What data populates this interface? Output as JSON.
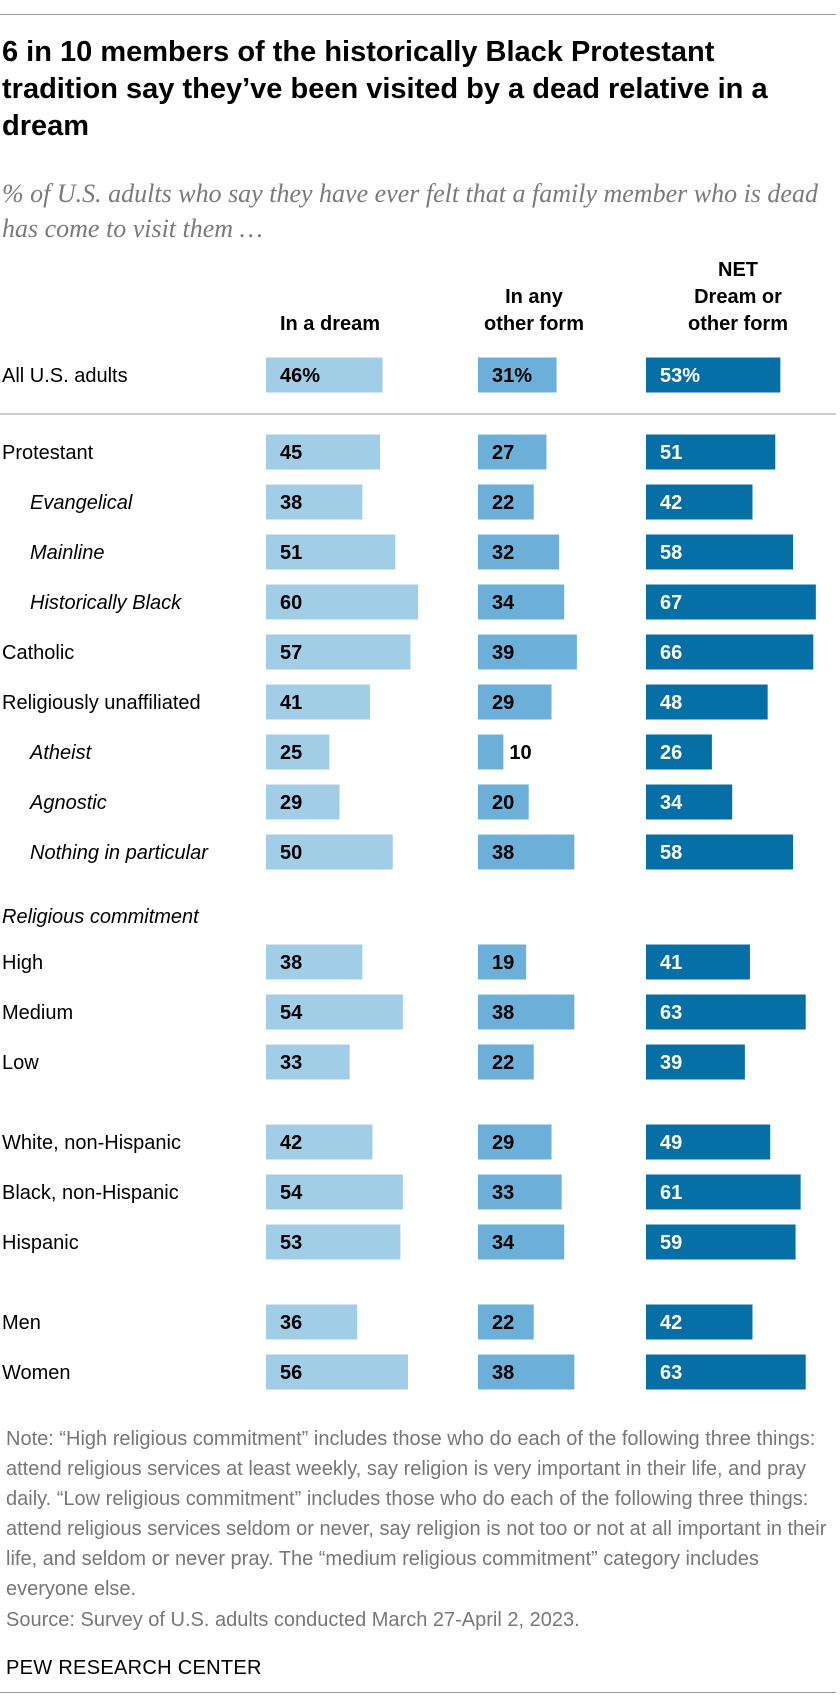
{
  "title": "6 in 10 members of the historically Black Protestant tradition say they’ve been visited by a dead relative in a dream",
  "subtitle": "% of U.S. adults who say they have ever felt that a family member who is dead has come to visit them …",
  "note": "Note: “High religious commitment” includes those who do each of the following three things: attend religious services at least weekly, say religion is very important in their life, and pray daily. “Low religious commitment” includes those who do each of the following three things: attend religious services seldom or never, say religion is not too or not at all important in their life, and seldom or never pray. The “medium religious commitment” category includes everyone else.",
  "source": "Source: Survey of U.S. adults conducted March 27-April 2, 2023.",
  "brand": "PEW RESEARCH CENTER",
  "colors": {
    "dream": "#a1cde7",
    "other_form": "#6cb0d9",
    "net": "#066fa6",
    "label_on_dark": "#ffffff",
    "label_on_light": "#000000"
  },
  "chart_data": {
    "type": "bar",
    "orientation": "horizontal",
    "layout": "three side-by-side bar panels",
    "value_format": "percent shown on first row, plain numbers elsewhere",
    "series": [
      {
        "name": "In a dream",
        "header_lines": [
          "In a dream"
        ]
      },
      {
        "name": "In any other form",
        "header_lines": [
          "In any",
          "other form"
        ]
      },
      {
        "name": "NET Dream or other form",
        "header_lines": [
          "NET",
          "Dream or",
          "other form"
        ]
      }
    ],
    "rows": [
      {
        "label": "All U.S. adults",
        "italic": false,
        "indent": false,
        "values": [
          46,
          31,
          53
        ],
        "value_labels": [
          "46%",
          "31%",
          "53%"
        ]
      },
      {
        "label": "Protestant",
        "italic": false,
        "indent": false,
        "values": [
          45,
          27,
          51
        ],
        "value_labels": [
          "45",
          "27",
          "51"
        ]
      },
      {
        "label": "Evangelical",
        "italic": true,
        "indent": true,
        "values": [
          38,
          22,
          42
        ],
        "value_labels": [
          "38",
          "22",
          "42"
        ]
      },
      {
        "label": "Mainline",
        "italic": true,
        "indent": true,
        "values": [
          51,
          32,
          58
        ],
        "value_labels": [
          "51",
          "32",
          "58"
        ]
      },
      {
        "label": "Historically Black",
        "italic": true,
        "indent": true,
        "values": [
          60,
          34,
          67
        ],
        "value_labels": [
          "60",
          "34",
          "67"
        ]
      },
      {
        "label": "Catholic",
        "italic": false,
        "indent": false,
        "values": [
          57,
          39,
          66
        ],
        "value_labels": [
          "57",
          "39",
          "66"
        ]
      },
      {
        "label": "Religiously unaffiliated",
        "italic": false,
        "indent": false,
        "values": [
          41,
          29,
          48
        ],
        "value_labels": [
          "41",
          "29",
          "48"
        ]
      },
      {
        "label": "Atheist",
        "italic": true,
        "indent": true,
        "values": [
          25,
          10,
          26
        ],
        "value_labels": [
          "25",
          "10",
          "26"
        ]
      },
      {
        "label": "Agnostic",
        "italic": true,
        "indent": true,
        "values": [
          29,
          20,
          34
        ],
        "value_labels": [
          "29",
          "20",
          "34"
        ]
      },
      {
        "label": "Nothing in particular",
        "italic": true,
        "indent": true,
        "values": [
          50,
          38,
          58
        ],
        "value_labels": [
          "50",
          "38",
          "58"
        ]
      },
      {
        "label": "High",
        "italic": false,
        "indent": false,
        "values": [
          38,
          19,
          41
        ],
        "value_labels": [
          "38",
          "19",
          "41"
        ]
      },
      {
        "label": "Medium",
        "italic": false,
        "indent": false,
        "values": [
          54,
          38,
          63
        ],
        "value_labels": [
          "54",
          "38",
          "63"
        ]
      },
      {
        "label": "Low",
        "italic": false,
        "indent": false,
        "values": [
          33,
          22,
          39
        ],
        "value_labels": [
          "33",
          "22",
          "39"
        ]
      },
      {
        "label": "White, non-Hispanic",
        "italic": false,
        "indent": false,
        "values": [
          42,
          29,
          49
        ],
        "value_labels": [
          "42",
          "29",
          "49"
        ]
      },
      {
        "label": "Black, non-Hispanic",
        "italic": false,
        "indent": false,
        "values": [
          54,
          33,
          61
        ],
        "value_labels": [
          "54",
          "33",
          "61"
        ]
      },
      {
        "label": "Hispanic",
        "italic": false,
        "indent": false,
        "values": [
          53,
          34,
          59
        ],
        "value_labels": [
          "53",
          "34",
          "59"
        ]
      },
      {
        "label": "Men",
        "italic": false,
        "indent": false,
        "values": [
          36,
          22,
          42
        ],
        "value_labels": [
          "36",
          "22",
          "42"
        ]
      },
      {
        "label": "Women",
        "italic": false,
        "indent": false,
        "values": [
          56,
          38,
          63
        ],
        "value_labels": [
          "56",
          "38",
          "63"
        ]
      }
    ],
    "section_headers": [
      {
        "label": "Religious commitment",
        "italic": true,
        "before_row": "High"
      }
    ]
  }
}
